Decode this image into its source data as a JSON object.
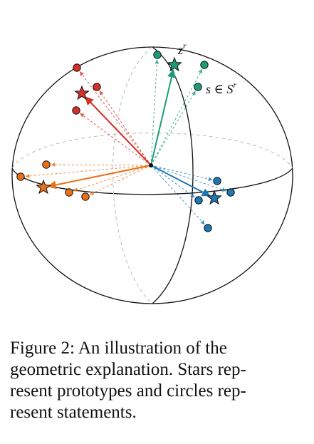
{
  "labels": {
    "prototype": "z",
    "prototype_sup": "r",
    "statement": "s ∈ S",
    "statement_sup": "r"
  },
  "caption": {
    "line1": "Figure 2:   An illustration of the",
    "line2": "geometric explanation. Stars rep-",
    "line3": "resent prototypes and circles rep-",
    "line4": "resent statements."
  },
  "colors": {
    "red": "#d73027",
    "teal": "#1b9e77",
    "orange": "#ec7014",
    "blue": "#1f78b4",
    "outline": "#111111",
    "dashed": "#bbbbbb"
  }
}
